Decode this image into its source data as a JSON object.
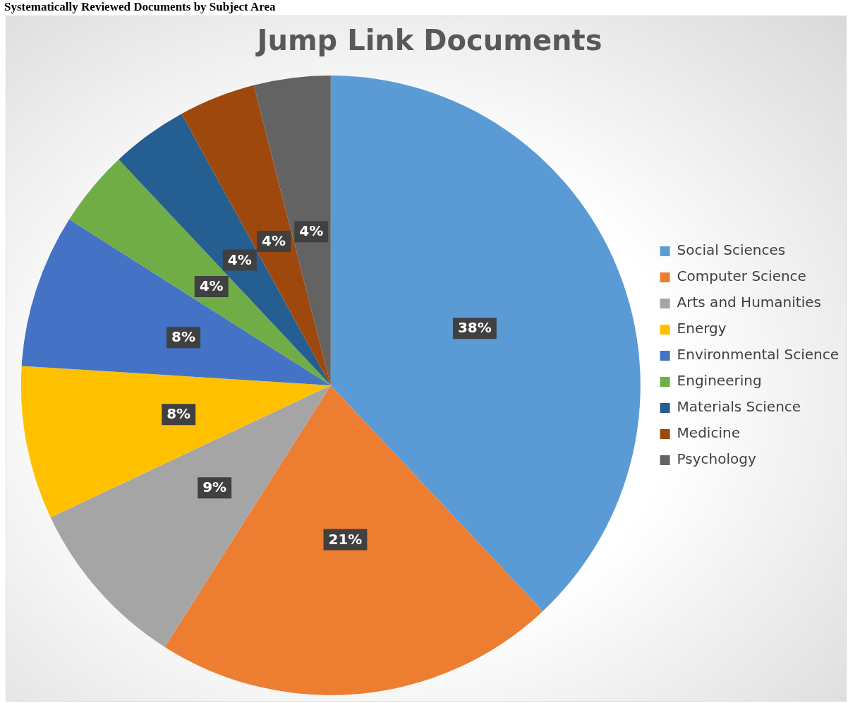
{
  "chart_data": {
    "type": "pie",
    "title": "Jump Link Documents",
    "annotations": [
      "Systematically Reviewed Documents by Subject Area"
    ],
    "categories": [
      "Social Sciences",
      "Computer Science",
      "Arts and Humanities",
      "Energy",
      "Environmental Science",
      "Engineering",
      "Materials Science",
      "Medicine",
      "Psychology"
    ],
    "values": [
      38,
      21,
      9,
      8,
      8,
      4,
      4,
      4,
      4
    ],
    "value_labels": [
      "38%",
      "21%",
      "9%",
      "8%",
      "8%",
      "4%",
      "4%",
      "4%",
      "4%"
    ],
    "colors": [
      "#5b9bd5",
      "#ed7d31",
      "#a5a5a5",
      "#ffc000",
      "#4472c4",
      "#70ad47",
      "#255e91",
      "#9e480e",
      "#636363"
    ],
    "legend": "right"
  }
}
